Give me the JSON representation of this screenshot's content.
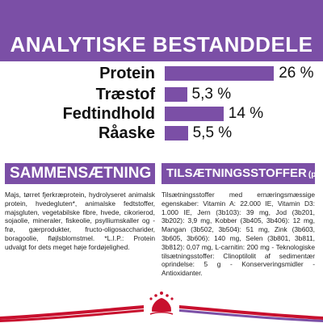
{
  "analysis": {
    "title": "ANALYTISKE BESTANDDELE",
    "accent_color": "#7b4fa6",
    "rows": [
      {
        "label": "Protein",
        "value_text": "26 %",
        "value": 26
      },
      {
        "label": "Træstof",
        "value_text": "5,3 %",
        "value": 5.3
      },
      {
        "label": "Fedtindhold",
        "value_text": "14 %",
        "value": 14
      },
      {
        "label": "Råaske",
        "value_text": "5,5 %",
        "value": 5.5
      }
    ]
  },
  "composition": {
    "title": "SAMMENSÆTNING",
    "text": "Majs, tørret fjerkræprotein, hydrolyseret animalsk protein, hvedegluten*, animalske fedtstoffer, majsgluten, vegetabilske fibre, hvede, cikorierod, sojaolie, mineraler, fiskeolie, psylliumskaller og -frø, gærprodukter, fructo-oligosaccharider, boragoolie, fløjlsblomstmel. *L.I.P.: Protein udvalgt for dets meget høje fordøjelighed."
  },
  "additives": {
    "title": "TILSÆTNINGSSTOFFER",
    "title_suffix": "(pr. kg)",
    "text": "Tilsætningsstoffer med ernæringsmæssige egenskaber: Vitamin A: 22.000 IE, Vitamin D3: 1.000 IE, Jern (3b103): 39 mg, Jod (3b201, 3b202): 3,9 mg, Kobber (3b405, 3b406): 12 mg, Mangan (3b502, 3b504): 51 mg, Zink (3b603, 3b605, 3b606): 140 mg, Selen (3b801, 3b811, 3b812): 0,07 mg, L-carnitin: 200 mg - Teknologiske tilsætningsstoffer: Clinoptilolit af sedimentær oprindelse: 5 g - Konserveringsmidler - Antioxidanter."
  },
  "footer": {
    "logo_icon": "royal-canin-crown-logo-icon",
    "wave_colors": [
      "#c8102e",
      "#7b4fa6"
    ]
  }
}
